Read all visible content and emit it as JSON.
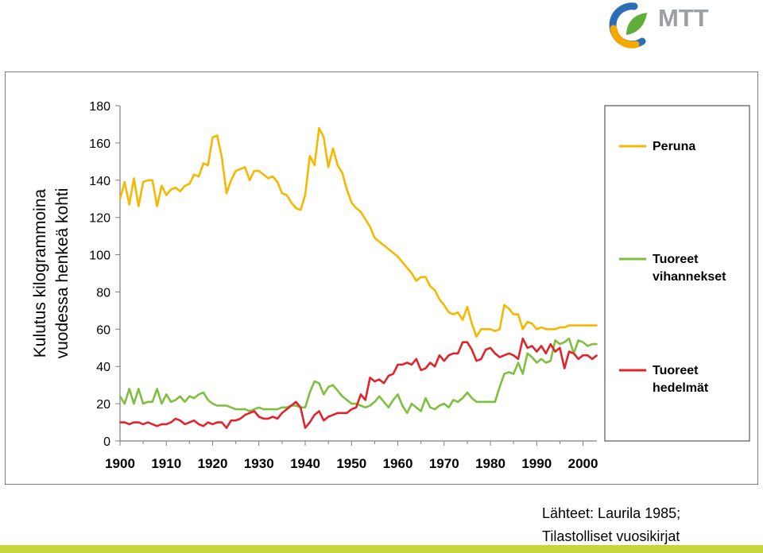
{
  "brand": {
    "logo_text": "MTT"
  },
  "source": {
    "line1": "Lähteet: Laurila 1985;",
    "line2": "Tilastolliset vuosikirjat"
  },
  "chart_data": {
    "type": "line",
    "ylabel": "Kulutus kilogrammoina vuodessa henkeä kohti",
    "ylabel_lines": [
      "Kulutus kilogrammoina",
      "vuodessa henkeä kohti"
    ],
    "xlabel": "",
    "xlim": [
      1900,
      2003
    ],
    "ylim": [
      0,
      180
    ],
    "x_ticks": [
      1900,
      1910,
      1920,
      1930,
      1940,
      1950,
      1960,
      1970,
      1980,
      1990,
      2000
    ],
    "y_ticks": [
      0,
      20,
      40,
      60,
      80,
      100,
      120,
      140,
      160,
      180
    ],
    "grid": false,
    "legend_position": "right",
    "series": [
      {
        "name": "Peruna",
        "legend_lines": [
          "Peruna"
        ],
        "color": "#f5b800",
        "points": [
          [
            1900,
            130
          ],
          [
            1901,
            139
          ],
          [
            1902,
            127
          ],
          [
            1903,
            141
          ],
          [
            1904,
            126
          ],
          [
            1905,
            139
          ],
          [
            1906,
            140
          ],
          [
            1907,
            140
          ],
          [
            1908,
            126
          ],
          [
            1909,
            137
          ],
          [
            1910,
            132
          ],
          [
            1911,
            135
          ],
          [
            1912,
            136
          ],
          [
            1913,
            134
          ],
          [
            1914,
            137
          ],
          [
            1915,
            138
          ],
          [
            1916,
            143
          ],
          [
            1917,
            142
          ],
          [
            1918,
            149
          ],
          [
            1919,
            148
          ],
          [
            1920,
            163
          ],
          [
            1921,
            164
          ],
          [
            1922,
            152
          ],
          [
            1923,
            133
          ],
          [
            1924,
            140
          ],
          [
            1925,
            145
          ],
          [
            1926,
            146
          ],
          [
            1927,
            147
          ],
          [
            1928,
            140
          ],
          [
            1929,
            145
          ],
          [
            1930,
            145
          ],
          [
            1931,
            143
          ],
          [
            1932,
            141
          ],
          [
            1933,
            142
          ],
          [
            1934,
            139
          ],
          [
            1935,
            133
          ],
          [
            1936,
            132
          ],
          [
            1937,
            128
          ],
          [
            1938,
            125
          ],
          [
            1939,
            124
          ],
          [
            1940,
            132
          ],
          [
            1941,
            153
          ],
          [
            1942,
            148
          ],
          [
            1943,
            168
          ],
          [
            1944,
            163
          ],
          [
            1945,
            147
          ],
          [
            1946,
            157
          ],
          [
            1947,
            148
          ],
          [
            1948,
            144
          ],
          [
            1949,
            135
          ],
          [
            1950,
            128
          ],
          [
            1951,
            125
          ],
          [
            1952,
            123
          ],
          [
            1953,
            119
          ],
          [
            1954,
            115
          ],
          [
            1955,
            109
          ],
          [
            1956,
            107
          ],
          [
            1957,
            105
          ],
          [
            1958,
            103
          ],
          [
            1959,
            101
          ],
          [
            1960,
            99
          ],
          [
            1961,
            96
          ],
          [
            1962,
            93
          ],
          [
            1963,
            90
          ],
          [
            1964,
            86
          ],
          [
            1965,
            88
          ],
          [
            1966,
            88
          ],
          [
            1967,
            83
          ],
          [
            1968,
            81
          ],
          [
            1969,
            76
          ],
          [
            1970,
            73
          ],
          [
            1971,
            69
          ],
          [
            1972,
            68
          ],
          [
            1973,
            69
          ],
          [
            1974,
            65
          ],
          [
            1975,
            72
          ],
          [
            1976,
            63
          ],
          [
            1977,
            56
          ],
          [
            1978,
            60
          ],
          [
            1979,
            60
          ],
          [
            1980,
            60
          ],
          [
            1981,
            59
          ],
          [
            1982,
            60
          ],
          [
            1983,
            73
          ],
          [
            1984,
            71
          ],
          [
            1985,
            68
          ],
          [
            1986,
            68
          ],
          [
            1987,
            60
          ],
          [
            1988,
            64
          ],
          [
            1989,
            63
          ],
          [
            1990,
            60
          ],
          [
            1991,
            61
          ],
          [
            1992,
            60
          ],
          [
            1993,
            60
          ],
          [
            1994,
            60
          ],
          [
            1995,
            61
          ],
          [
            1996,
            61
          ],
          [
            1997,
            62
          ],
          [
            1998,
            62
          ],
          [
            1999,
            62
          ],
          [
            2000,
            62
          ],
          [
            2001,
            62
          ],
          [
            2002,
            62
          ],
          [
            2003,
            62
          ]
        ]
      },
      {
        "name": "Tuoreet vihannekset",
        "legend_lines": [
          "Tuoreet",
          "vihannekset"
        ],
        "color": "#7fbf3f",
        "points": [
          [
            1900,
            24
          ],
          [
            1901,
            20
          ],
          [
            1902,
            28
          ],
          [
            1903,
            20
          ],
          [
            1904,
            28
          ],
          [
            1905,
            20
          ],
          [
            1906,
            21
          ],
          [
            1907,
            21
          ],
          [
            1908,
            28
          ],
          [
            1909,
            20
          ],
          [
            1910,
            25
          ],
          [
            1911,
            21
          ],
          [
            1912,
            22
          ],
          [
            1913,
            24
          ],
          [
            1914,
            21
          ],
          [
            1915,
            24
          ],
          [
            1916,
            23
          ],
          [
            1917,
            25
          ],
          [
            1918,
            26
          ],
          [
            1919,
            22
          ],
          [
            1920,
            20
          ],
          [
            1921,
            19
          ],
          [
            1922,
            19
          ],
          [
            1923,
            19
          ],
          [
            1924,
            18
          ],
          [
            1925,
            17
          ],
          [
            1926,
            17
          ],
          [
            1927,
            17
          ],
          [
            1928,
            16
          ],
          [
            1929,
            17
          ],
          [
            1930,
            18
          ],
          [
            1931,
            17
          ],
          [
            1932,
            17
          ],
          [
            1933,
            17
          ],
          [
            1934,
            17
          ],
          [
            1935,
            18
          ],
          [
            1936,
            18
          ],
          [
            1937,
            19
          ],
          [
            1938,
            19
          ],
          [
            1939,
            18
          ],
          [
            1940,
            18
          ],
          [
            1941,
            26
          ],
          [
            1942,
            32
          ],
          [
            1943,
            31
          ],
          [
            1944,
            25
          ],
          [
            1945,
            29
          ],
          [
            1946,
            30
          ],
          [
            1947,
            27
          ],
          [
            1948,
            24
          ],
          [
            1949,
            22
          ],
          [
            1950,
            20
          ],
          [
            1951,
            20
          ],
          [
            1952,
            19
          ],
          [
            1953,
            18
          ],
          [
            1954,
            19
          ],
          [
            1955,
            21
          ],
          [
            1956,
            24
          ],
          [
            1957,
            21
          ],
          [
            1958,
            18
          ],
          [
            1959,
            22
          ],
          [
            1960,
            25
          ],
          [
            1961,
            19
          ],
          [
            1962,
            15
          ],
          [
            1963,
            20
          ],
          [
            1964,
            18
          ],
          [
            1965,
            16
          ],
          [
            1966,
            23
          ],
          [
            1967,
            18
          ],
          [
            1968,
            17
          ],
          [
            1969,
            19
          ],
          [
            1970,
            20
          ],
          [
            1971,
            18
          ],
          [
            1972,
            22
          ],
          [
            1973,
            21
          ],
          [
            1974,
            23
          ],
          [
            1975,
            26
          ],
          [
            1976,
            23
          ],
          [
            1977,
            21
          ],
          [
            1978,
            21
          ],
          [
            1979,
            21
          ],
          [
            1980,
            21
          ],
          [
            1981,
            21
          ],
          [
            1982,
            29
          ],
          [
            1983,
            36
          ],
          [
            1984,
            37
          ],
          [
            1985,
            36
          ],
          [
            1986,
            42
          ],
          [
            1987,
            36
          ],
          [
            1988,
            47
          ],
          [
            1989,
            45
          ],
          [
            1990,
            42
          ],
          [
            1991,
            44
          ],
          [
            1992,
            42
          ],
          [
            1993,
            43
          ],
          [
            1994,
            54
          ],
          [
            1995,
            52
          ],
          [
            1996,
            53
          ],
          [
            1997,
            55
          ],
          [
            1998,
            47
          ],
          [
            1999,
            54
          ],
          [
            2000,
            53
          ],
          [
            2001,
            51
          ],
          [
            2002,
            52
          ],
          [
            2003,
            52
          ]
        ]
      },
      {
        "name": "Tuoreet hedelmät",
        "legend_lines": [
          "Tuoreet",
          "hedelmät"
        ],
        "color": "#e0242c",
        "points": [
          [
            1900,
            10
          ],
          [
            1901,
            10
          ],
          [
            1902,
            9
          ],
          [
            1903,
            10
          ],
          [
            1904,
            10
          ],
          [
            1905,
            9
          ],
          [
            1906,
            10
          ],
          [
            1907,
            9
          ],
          [
            1908,
            8
          ],
          [
            1909,
            9
          ],
          [
            1910,
            9
          ],
          [
            1911,
            10
          ],
          [
            1912,
            12
          ],
          [
            1913,
            11
          ],
          [
            1914,
            9
          ],
          [
            1915,
            10
          ],
          [
            1916,
            11
          ],
          [
            1917,
            9
          ],
          [
            1918,
            8
          ],
          [
            1919,
            10
          ],
          [
            1920,
            9
          ],
          [
            1921,
            10
          ],
          [
            1922,
            10
          ],
          [
            1923,
            7
          ],
          [
            1924,
            11
          ],
          [
            1925,
            11
          ],
          [
            1926,
            12
          ],
          [
            1927,
            14
          ],
          [
            1928,
            15
          ],
          [
            1929,
            16
          ],
          [
            1930,
            13
          ],
          [
            1931,
            12
          ],
          [
            1932,
            12
          ],
          [
            1933,
            13
          ],
          [
            1934,
            12
          ],
          [
            1935,
            15
          ],
          [
            1936,
            17
          ],
          [
            1937,
            19
          ],
          [
            1938,
            21
          ],
          [
            1939,
            18
          ],
          [
            1940,
            7
          ],
          [
            1941,
            10
          ],
          [
            1942,
            14
          ],
          [
            1943,
            16
          ],
          [
            1944,
            11
          ],
          [
            1945,
            13
          ],
          [
            1946,
            14
          ],
          [
            1947,
            15
          ],
          [
            1948,
            15
          ],
          [
            1949,
            15
          ],
          [
            1950,
            17
          ],
          [
            1951,
            18
          ],
          [
            1952,
            25
          ],
          [
            1953,
            22
          ],
          [
            1954,
            34
          ],
          [
            1955,
            32
          ],
          [
            1956,
            33
          ],
          [
            1957,
            31
          ],
          [
            1958,
            35
          ],
          [
            1959,
            36
          ],
          [
            1960,
            41
          ],
          [
            1961,
            41
          ],
          [
            1962,
            42
          ],
          [
            1963,
            41
          ],
          [
            1964,
            44
          ],
          [
            1965,
            38
          ],
          [
            1966,
            39
          ],
          [
            1967,
            42
          ],
          [
            1968,
            40
          ],
          [
            1969,
            46
          ],
          [
            1970,
            43
          ],
          [
            1971,
            46
          ],
          [
            1972,
            47
          ],
          [
            1973,
            47
          ],
          [
            1974,
            53
          ],
          [
            1975,
            53
          ],
          [
            1976,
            49
          ],
          [
            1977,
            43
          ],
          [
            1978,
            44
          ],
          [
            1979,
            49
          ],
          [
            1980,
            50
          ],
          [
            1981,
            47
          ],
          [
            1982,
            45
          ],
          [
            1983,
            46
          ],
          [
            1984,
            47
          ],
          [
            1985,
            46
          ],
          [
            1986,
            44
          ],
          [
            1987,
            55
          ],
          [
            1988,
            50
          ],
          [
            1989,
            51
          ],
          [
            1990,
            48
          ],
          [
            1991,
            51
          ],
          [
            1992,
            47
          ],
          [
            1993,
            52
          ],
          [
            1994,
            48
          ],
          [
            1995,
            50
          ],
          [
            1996,
            39
          ],
          [
            1997,
            48
          ],
          [
            1998,
            47
          ],
          [
            1999,
            44
          ],
          [
            2000,
            46
          ],
          [
            2001,
            46
          ],
          [
            2002,
            44
          ],
          [
            2003,
            46
          ]
        ]
      }
    ]
  }
}
